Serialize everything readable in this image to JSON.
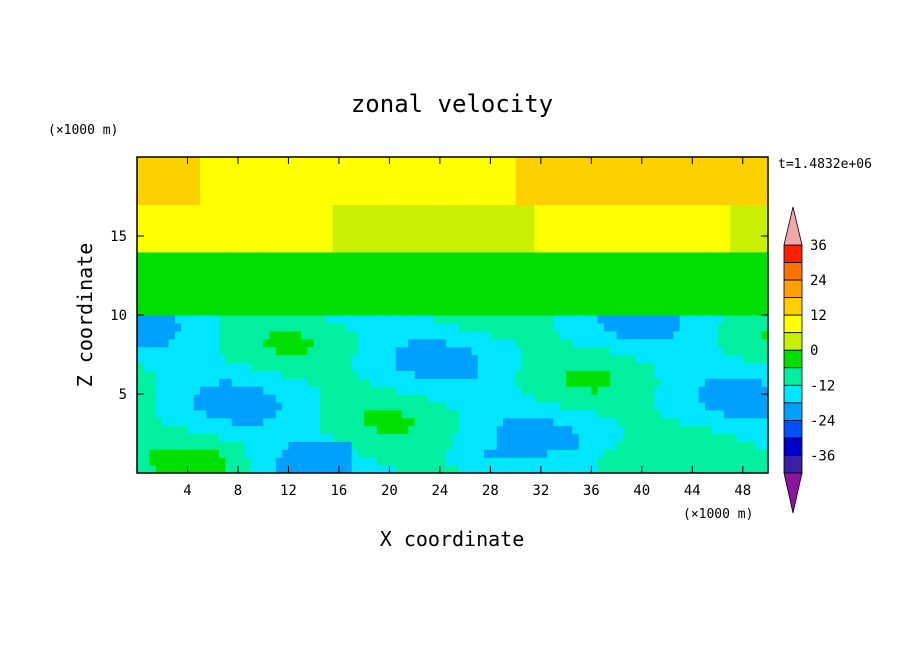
{
  "chart_data": {
    "type": "heatmap",
    "title": "zonal velocity",
    "xlabel": "X coordinate",
    "ylabel": "Z coordinate",
    "x_unit": "(×1000 m)",
    "z_unit": "(×1000 m)",
    "time_label": "t=1.4832e+06",
    "xlim": [
      0,
      50
    ],
    "ylim": [
      0,
      20
    ],
    "x_ticks": [
      4,
      8,
      12,
      16,
      20,
      24,
      28,
      32,
      36,
      40,
      44,
      48
    ],
    "y_ticks": [
      5,
      10,
      15
    ],
    "levels": [
      -42,
      -36,
      -30,
      -24,
      -18,
      -12,
      -6,
      0,
      6,
      12,
      18,
      24,
      30,
      36,
      42
    ],
    "colorbar_labels": [
      36,
      24,
      12,
      0,
      -12,
      -24,
      -36
    ],
    "colors": [
      "#7a00a8",
      "#3a1fa6",
      "#0000cc",
      "#0050ff",
      "#00a0ff",
      "#00e6ff",
      "#00f0a0",
      "#00e000",
      "#c8f000",
      "#ffff00",
      "#ffd000",
      "#ffa000",
      "#ff7000",
      "#ff2000",
      "#f4a0a0"
    ],
    "extend_low_color": "#8c14a0",
    "extend_high_color": "#f2a6a6",
    "description_fields": {
      "z_profile_top": "warm (positive) velocities near top",
      "z_profile_bottom": "weak negative velocities near bottom"
    }
  }
}
